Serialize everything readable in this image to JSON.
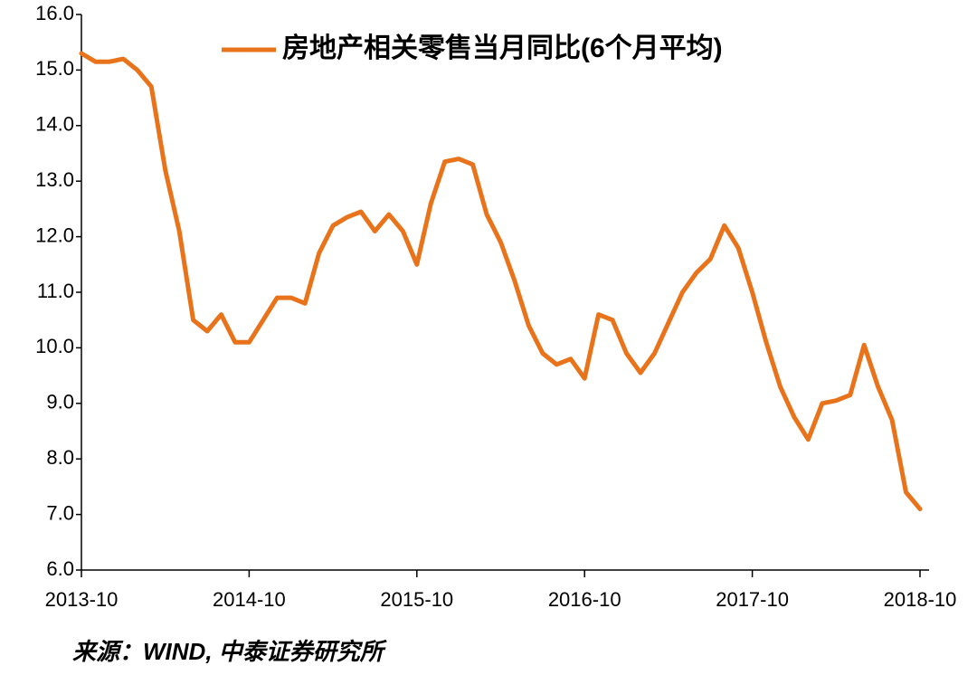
{
  "chart_data": {
    "type": "line",
    "legend": "房地产相关零售当月同比(6个月平均)",
    "source": "来源：WIND, 中泰证券研究所",
    "x": [
      "2013-10",
      "2013-11",
      "2013-12",
      "2014-01",
      "2014-02",
      "2014-03",
      "2014-04",
      "2014-05",
      "2014-06",
      "2014-07",
      "2014-08",
      "2014-09",
      "2014-10",
      "2014-11",
      "2014-12",
      "2015-01",
      "2015-02",
      "2015-03",
      "2015-04",
      "2015-05",
      "2015-06",
      "2015-07",
      "2015-08",
      "2015-09",
      "2015-10",
      "2015-11",
      "2015-12",
      "2016-01",
      "2016-02",
      "2016-03",
      "2016-04",
      "2016-05",
      "2016-06",
      "2016-07",
      "2016-08",
      "2016-09",
      "2016-10",
      "2016-11",
      "2016-12",
      "2017-01",
      "2017-02",
      "2017-03",
      "2017-04",
      "2017-05",
      "2017-06",
      "2017-07",
      "2017-08",
      "2017-09",
      "2017-10",
      "2017-11",
      "2017-12",
      "2018-01",
      "2018-02",
      "2018-03",
      "2018-04",
      "2018-05",
      "2018-06",
      "2018-07",
      "2018-08",
      "2018-09",
      "2018-10"
    ],
    "series": [
      {
        "name": "房地产相关零售当月同比(6个月平均)",
        "color": "#e8731a",
        "values": [
          15.3,
          15.15,
          15.15,
          15.2,
          15.0,
          14.7,
          13.2,
          12.1,
          10.5,
          10.3,
          10.6,
          10.1,
          10.1,
          10.5,
          10.9,
          10.9,
          10.8,
          11.7,
          12.2,
          12.35,
          12.45,
          12.1,
          12.4,
          12.1,
          11.5,
          12.6,
          13.35,
          13.4,
          13.3,
          12.4,
          11.9,
          11.2,
          10.4,
          9.9,
          9.7,
          9.8,
          9.45,
          10.6,
          10.5,
          9.9,
          9.55,
          9.9,
          10.45,
          11.0,
          11.35,
          11.6,
          12.2,
          11.8,
          11.0,
          10.1,
          9.3,
          8.75,
          8.35,
          9.0,
          9.05,
          9.15,
          10.05,
          9.3,
          8.7,
          7.4,
          7.1
        ]
      }
    ],
    "xticks": [
      "2013-10",
      "2014-10",
      "2015-10",
      "2016-10",
      "2017-10",
      "2018-10"
    ],
    "ylim": [
      6,
      16
    ],
    "yticks": [
      {
        "value": 6,
        "label": "6.0"
      },
      {
        "value": 7,
        "label": "7.0"
      },
      {
        "value": 8,
        "label": "8.0"
      },
      {
        "value": 9,
        "label": "9.0"
      },
      {
        "value": 10,
        "label": "10.0"
      },
      {
        "value": 11,
        "label": "11.0"
      },
      {
        "value": 12,
        "label": "12.0"
      },
      {
        "value": 13,
        "label": "13.0"
      },
      {
        "value": 14,
        "label": "14.0"
      },
      {
        "value": 15,
        "label": "15.0"
      },
      {
        "value": 16,
        "label": "16.0"
      }
    ]
  }
}
